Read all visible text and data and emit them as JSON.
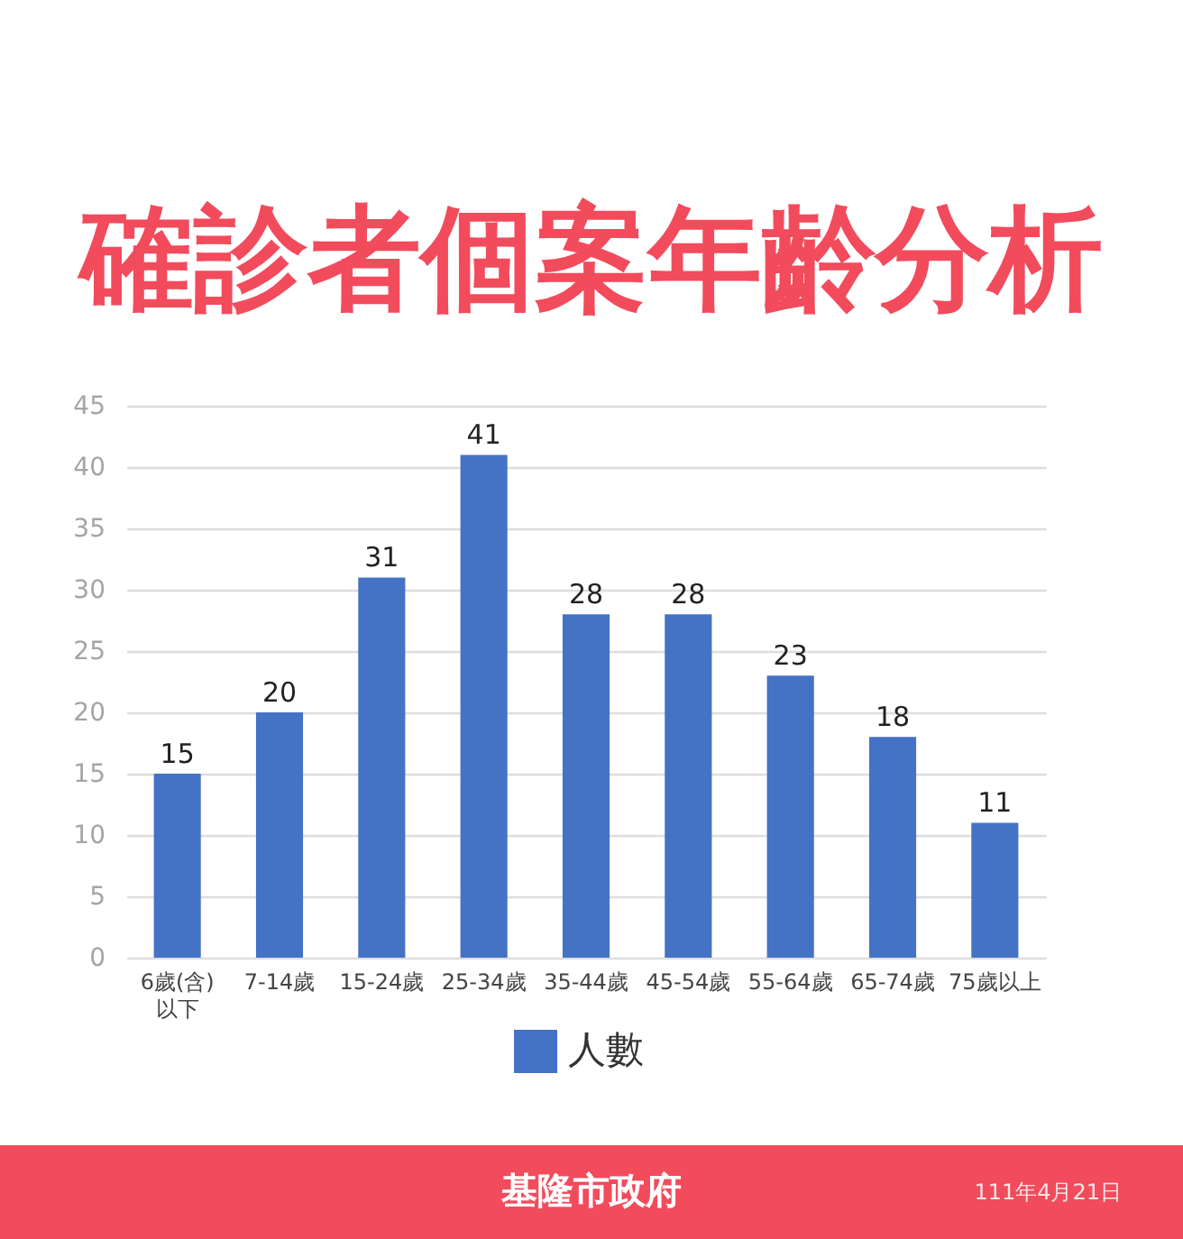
{
  "chart_data": {
    "type": "bar",
    "title": "確診者個案年齡分析",
    "categories": [
      "6歲(含)\n以下",
      "7-14歲",
      "15-24歲",
      "25-34歲",
      "35-44歲",
      "45-54歲",
      "55-64歲",
      "65-74歲",
      "75歲以上"
    ],
    "series": [
      {
        "name": "人數",
        "color": "#4472c4",
        "values": [
          15,
          20,
          31,
          41,
          28,
          28,
          23,
          18,
          11
        ]
      }
    ],
    "ylim": [
      0,
      45
    ],
    "yticks": [
      0,
      5,
      10,
      15,
      20,
      25,
      30,
      35,
      40,
      45
    ],
    "grid": "y",
    "data_labels": true,
    "legend": "bottom",
    "annotations": [
      "基隆市政府",
      "111年4月21日"
    ]
  }
}
